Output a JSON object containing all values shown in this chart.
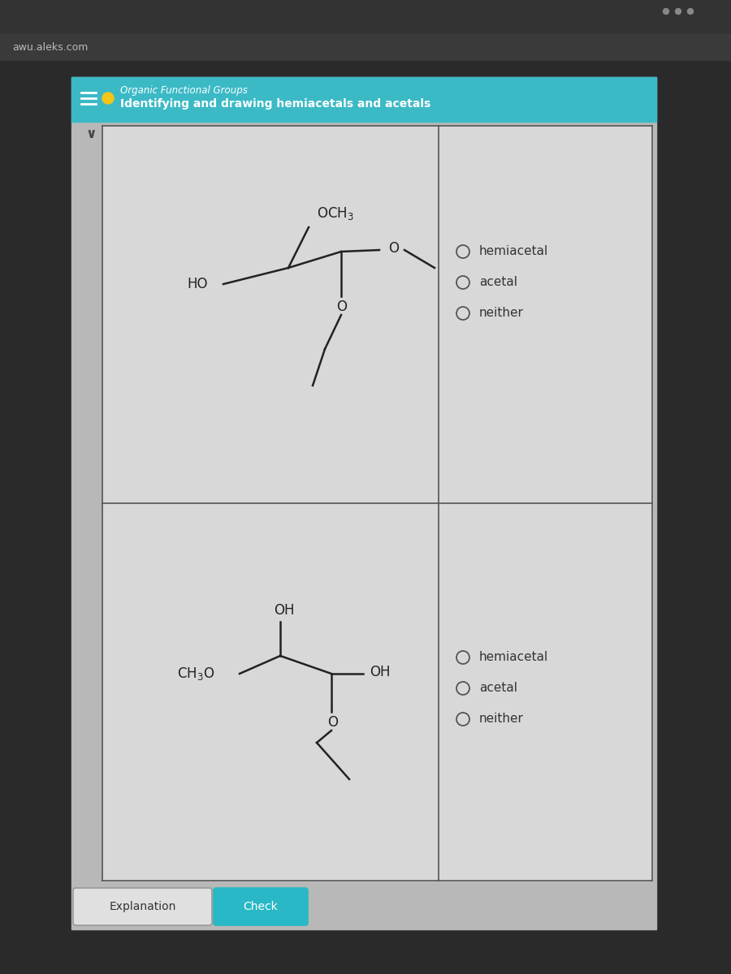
{
  "browser_url": "awu.aleks.com",
  "page_title": "Organic Functional Groups",
  "page_subtitle": "Identifying and drawing hemiacetals and acetals",
  "bg_color_top": "#2a2a2a",
  "bg_color_header": "#3bbac6",
  "bg_color_body": "#c8c8c8",
  "bg_color_cell": "#d8d8d8",
  "line_color": "#222222",
  "options_1": [
    "hemiacetal",
    "acetal",
    "neither"
  ],
  "options_2": [
    "hemiacetal",
    "acetal",
    "neither"
  ],
  "button_explanation": "Explanation",
  "button_check": "Check",
  "button_check_color": "#29b8c5"
}
